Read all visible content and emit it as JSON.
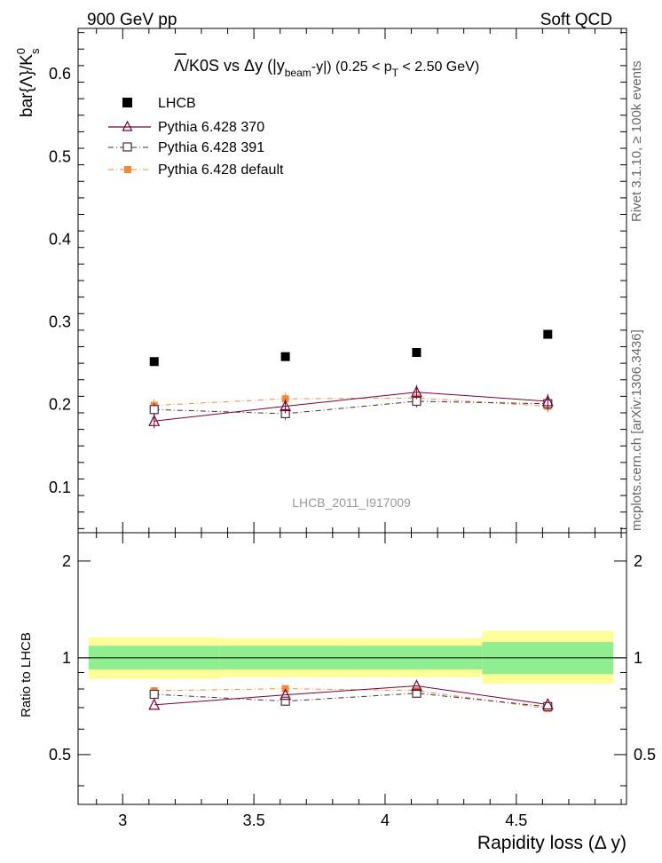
{
  "header": {
    "left": "900 GeV pp",
    "right": "Soft QCD"
  },
  "side_labels": {
    "rivet": "Rivet 3.1.10, ≥ 100k events",
    "mcplots": "mcplots.cern.ch [arXiv:1306.3436]"
  },
  "watermark": "LHCB_2011_I917009",
  "colors": {
    "lhcb": "#000000",
    "p370": "#7a0033",
    "p391": "#4d2a3a",
    "pdef": "#f08a3c",
    "band_inner": "#90ee90",
    "band_outer": "#ffff99"
  },
  "chart_data": [
    {
      "type": "scatter",
      "title": "Λ̄/K0S vs Δy (|y_beam-y|) (0.25 < p_T < 2.50 GeV)",
      "title_parts": {
        "main": "Λ/K0S vs  Δy (|y",
        "beam": "beam",
        "mid": "-y|) (0.25 < p",
        "T": "T",
        "end": " < 2.50 GeV)"
      },
      "ylabel": "bar{Λ}/K⁰ₛ",
      "ylabel_parts": {
        "main": "bar{Λ}/K",
        "sup": "0",
        "sub": "s"
      },
      "xlim": [
        2.83,
        4.92
      ],
      "ylim": [
        0.045,
        0.655
      ],
      "yticks": [
        0.1,
        0.2,
        0.3,
        0.4,
        0.5,
        0.6
      ],
      "ytick_labels": [
        "0.1",
        "0.2",
        "0.3",
        "0.4",
        "0.5",
        "0.6"
      ],
      "x": [
        3.12,
        3.62,
        4.12,
        4.62
      ],
      "series": [
        {
          "name": "LHCB",
          "values": [
            0.252,
            0.258,
            0.263,
            0.285
          ]
        },
        {
          "name": "Pythia 6.428 370",
          "values": [
            0.18,
            0.198,
            0.215,
            0.204
          ]
        },
        {
          "name": "Pythia 6.428 391",
          "values": [
            0.194,
            0.189,
            0.204,
            0.201
          ]
        },
        {
          "name": "Pythia 6.428 default",
          "values": [
            0.199,
            0.207,
            0.208,
            0.198
          ]
        }
      ]
    },
    {
      "type": "scatter",
      "ylabel": "Ratio to LHCB",
      "xlabel": "Rapidity loss (Δ y)",
      "xlim": [
        2.83,
        4.92
      ],
      "ylim": [
        0.35,
        2.45
      ],
      "yscale": "log",
      "yticks": [
        0.5,
        1,
        2
      ],
      "ytick_labels": [
        "0.5",
        "1",
        "2"
      ],
      "xticks": [
        3,
        3.5,
        4,
        4.5
      ],
      "xtick_labels": [
        "3",
        "3.5",
        "4",
        "4.5"
      ],
      "x": [
        3.12,
        3.62,
        4.12,
        4.62
      ],
      "bins": [
        [
          2.87,
          3.37
        ],
        [
          3.37,
          3.87
        ],
        [
          3.87,
          4.37
        ],
        [
          4.37,
          4.87
        ]
      ],
      "band_inner": [
        [
          0.92,
          1.09
        ],
        [
          0.92,
          1.09
        ],
        [
          0.92,
          1.09
        ],
        [
          0.89,
          1.12
        ]
      ],
      "band_outer": [
        [
          0.86,
          1.16
        ],
        [
          0.87,
          1.15
        ],
        [
          0.87,
          1.15
        ],
        [
          0.83,
          1.21
        ]
      ],
      "series": [
        {
          "name": "Pythia 6.428 370",
          "values": [
            0.714,
            0.767,
            0.818,
            0.716
          ]
        },
        {
          "name": "Pythia 6.428 391",
          "values": [
            0.77,
            0.733,
            0.776,
            0.705
          ]
        },
        {
          "name": "Pythia 6.428 default",
          "values": [
            0.79,
            0.802,
            0.791,
            0.695
          ]
        }
      ]
    }
  ]
}
